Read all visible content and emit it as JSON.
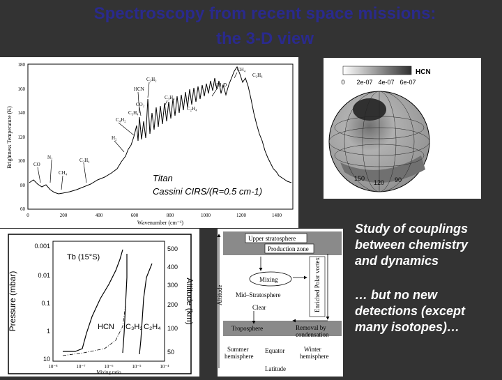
{
  "title": {
    "line1": "Spectroscopy from recent space missions:",
    "line2": "the 3-D view"
  },
  "spectrum": {
    "overlay_line1": "Titan",
    "overlay_line2": "Cassini CIRS/(R=0.5 cm-1)",
    "ylabel": "Brightness Temperature (K)",
    "xlabel": "Wavenumber (cm⁻¹)",
    "yticks": [
      "180",
      "160",
      "140",
      "120",
      "100",
      "80",
      "60"
    ],
    "xticks": [
      "0",
      "200",
      "400",
      "600",
      "800",
      "1000",
      "1200",
      "1400"
    ],
    "species": [
      "CH₄",
      "C₂H₆",
      "C₂H₂",
      "CH₃D",
      "HCN",
      "CO₂",
      "C₃H₈",
      "C₂H₄",
      "C₄H₂",
      "C₃H₄",
      "H₂",
      "N₂",
      "CO",
      "CH₄",
      "C₂H₄"
    ]
  },
  "globe": {
    "legend_label": "HCN",
    "scale_ticks": [
      "0",
      "2e-07",
      "4e-07",
      "6e-07"
    ],
    "lon_labels": [
      "150",
      "120",
      "90"
    ]
  },
  "profile": {
    "ylabel_left": "Pressure (mbar)",
    "ylabel_right": "Altitude (km)",
    "xlabel": "Mixing ratio",
    "pressure_ticks": [
      "0.001",
      "0.01",
      "0.1",
      "1",
      "10"
    ],
    "altitude_ticks": [
      "500",
      "400",
      "300",
      "200",
      "100",
      "50"
    ],
    "x_ticks": [
      "10⁻⁸",
      "10⁻⁷",
      "10⁻⁶",
      "10⁻⁵",
      "10⁻⁴"
    ],
    "legend": "Tb (15°S)",
    "curve_labels": [
      "HCN",
      "C₃H₂",
      "C₂H₄"
    ]
  },
  "diagram": {
    "upper": "Upper stratosphere",
    "production": "Production zone",
    "mixing": "Mixing",
    "mid": "Mid–Stratosphere",
    "clear": "Clear",
    "enriched": "Enriched Polar vortex",
    "altitude": "Altitude",
    "troposphere": "Troposphere",
    "removal_line1": "Removal by",
    "removal_line2": "condensation",
    "summer_line1": "Summer",
    "summer_line2": "hemisphere",
    "equator": "Equator",
    "winter_line1": "Winter",
    "winter_line2": "hemisphere",
    "latitude": "Latitude"
  },
  "captions": {
    "c1_line1": "Study of couplings",
    "c1_line2": "between chemistry",
    "c1_line3": "and dynamics",
    "c2_line1": "… but no new",
    "c2_line2": "detections (except",
    "c2_line3": "many isotopes)…"
  }
}
